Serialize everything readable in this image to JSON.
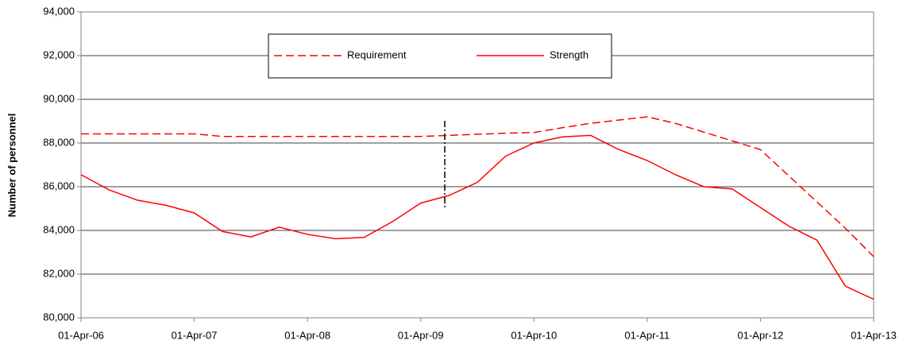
{
  "chart_data": {
    "type": "line",
    "y_label": "Number of personnel",
    "categories": [
      "01-Apr-06",
      null,
      null,
      null,
      "01-Apr-07",
      null,
      null,
      null,
      "01-Apr-08",
      null,
      null,
      null,
      "01-Apr-09",
      null,
      null,
      null,
      "01-Apr-10",
      null,
      null,
      null,
      "01-Apr-11",
      null,
      null,
      null,
      "01-Apr-12",
      null,
      null,
      null,
      "01-Apr-13"
    ],
    "series": [
      {
        "name": "Requirement",
        "color": "#ff0000",
        "dash": true,
        "values": [
          88420,
          88420,
          88420,
          88420,
          88420,
          88300,
          88300,
          88300,
          88300,
          88300,
          88300,
          88300,
          88300,
          88350,
          88400,
          88450,
          88480,
          88700,
          88900,
          89050,
          89200,
          88900,
          88500,
          88100,
          87700,
          86500,
          85300,
          84100,
          82800
        ]
      },
      {
        "name": "Strength",
        "color": "#ff0000",
        "dash": false,
        "values": [
          86550,
          85850,
          85380,
          85150,
          84800,
          83950,
          83700,
          84150,
          83820,
          83620,
          83680,
          84400,
          85250,
          85600,
          86200,
          87400,
          88000,
          88280,
          88350,
          87700,
          87200,
          86550,
          86000,
          85900,
          85050,
          84200,
          83550,
          81450,
          80850
        ]
      }
    ],
    "ylim": [
      80000,
      94000
    ],
    "yticks": [
      {
        "value": 80000,
        "label": "80,000"
      },
      {
        "value": 82000,
        "label": "82,000"
      },
      {
        "value": 84000,
        "label": "84,000"
      },
      {
        "value": 86000,
        "label": "86,000"
      },
      {
        "value": 88000,
        "label": "88,000"
      },
      {
        "value": 90000,
        "label": "90,000"
      },
      {
        "value": 92000,
        "label": "92,000"
      },
      {
        "value": 94000,
        "label": "94,000"
      }
    ],
    "grid": true
  }
}
